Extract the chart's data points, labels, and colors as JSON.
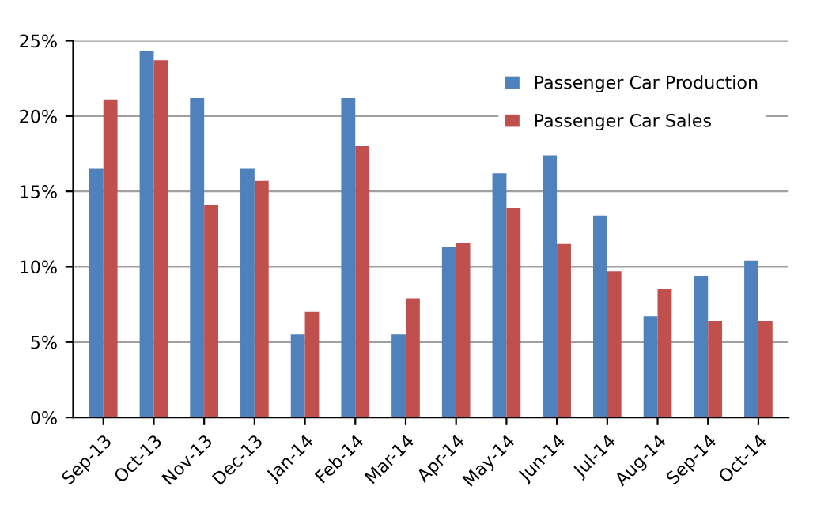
{
  "chart_data": {
    "type": "bar",
    "categories": [
      "Sep-13",
      "Oct-13",
      "Nov-13",
      "Dec-13",
      "Jan-14",
      "Feb-14",
      "Mar-14",
      "Apr-14",
      "May-14",
      "Jun-14",
      "Jul-14",
      "Aug-14",
      "Sep-14",
      "Oct-14"
    ],
    "series": [
      {
        "name": "Passenger Car Production",
        "color": "#4f81bd",
        "values": [
          16.5,
          24.3,
          21.2,
          16.5,
          5.5,
          21.2,
          5.5,
          11.3,
          16.2,
          17.4,
          13.4,
          6.7,
          9.4,
          10.4
        ]
      },
      {
        "name": "Passenger Car Sales",
        "color": "#c0504d",
        "values": [
          21.1,
          23.7,
          14.1,
          15.7,
          7.0,
          18.0,
          7.9,
          11.6,
          13.9,
          11.5,
          9.7,
          8.5,
          6.4,
          6.4
        ]
      }
    ],
    "ylim": [
      0,
      25
    ],
    "yticks": [
      {
        "value": 0,
        "label": "0%"
      },
      {
        "value": 5,
        "label": "5%"
      },
      {
        "value": 10,
        "label": "10%"
      },
      {
        "value": 15,
        "label": "15%"
      },
      {
        "value": 20,
        "label": "20%"
      },
      {
        "value": 25,
        "label": "25%"
      }
    ],
    "grid": "y",
    "legend": "top right"
  }
}
